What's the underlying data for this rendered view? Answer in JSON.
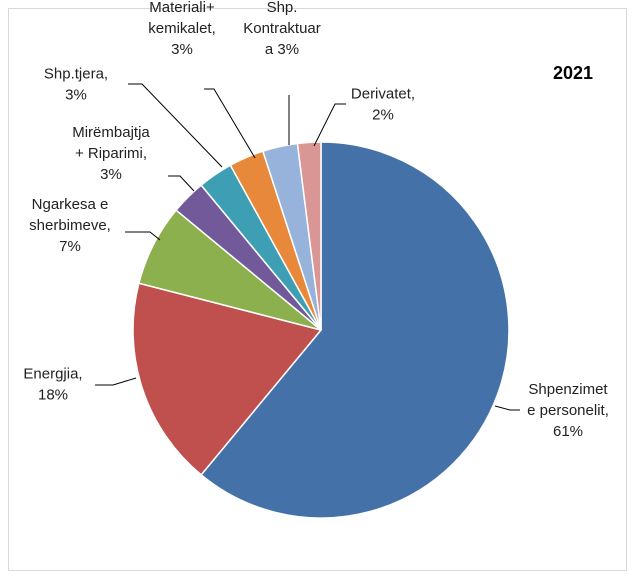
{
  "chart_data": {
    "type": "pie",
    "title": "2021",
    "slices": [
      {
        "label_lines": [
          "Shpenzimet",
          "e personelit,",
          "61%"
        ],
        "value": 61,
        "color": "#4472a8"
      },
      {
        "label_lines": [
          "Energjia,",
          "18%"
        ],
        "value": 18,
        "color": "#c0504d"
      },
      {
        "label_lines": [
          "Ngarkesa e",
          "sherbimeve,",
          "7%"
        ],
        "value": 7,
        "color": "#8db04e"
      },
      {
        "label_lines": [
          "Mirëmbajtja",
          "+ Riparimi,",
          "3%"
        ],
        "value": 3,
        "color": "#72599a"
      },
      {
        "label_lines": [
          "Shp.tjera,",
          "3%"
        ],
        "value": 3,
        "color": "#3e9fb4"
      },
      {
        "label_lines": [
          "Materiali+",
          "kemikalet,",
          "3%"
        ],
        "value": 3,
        "color": "#e8883b"
      },
      {
        "label_lines": [
          "Shp.",
          "Kontraktuar",
          "a 3%"
        ],
        "value": 3,
        "color": "#97b3dc"
      },
      {
        "label_lines": [
          "Derivatet,",
          "2%"
        ],
        "value": 2,
        "color": "#d99694"
      }
    ]
  }
}
